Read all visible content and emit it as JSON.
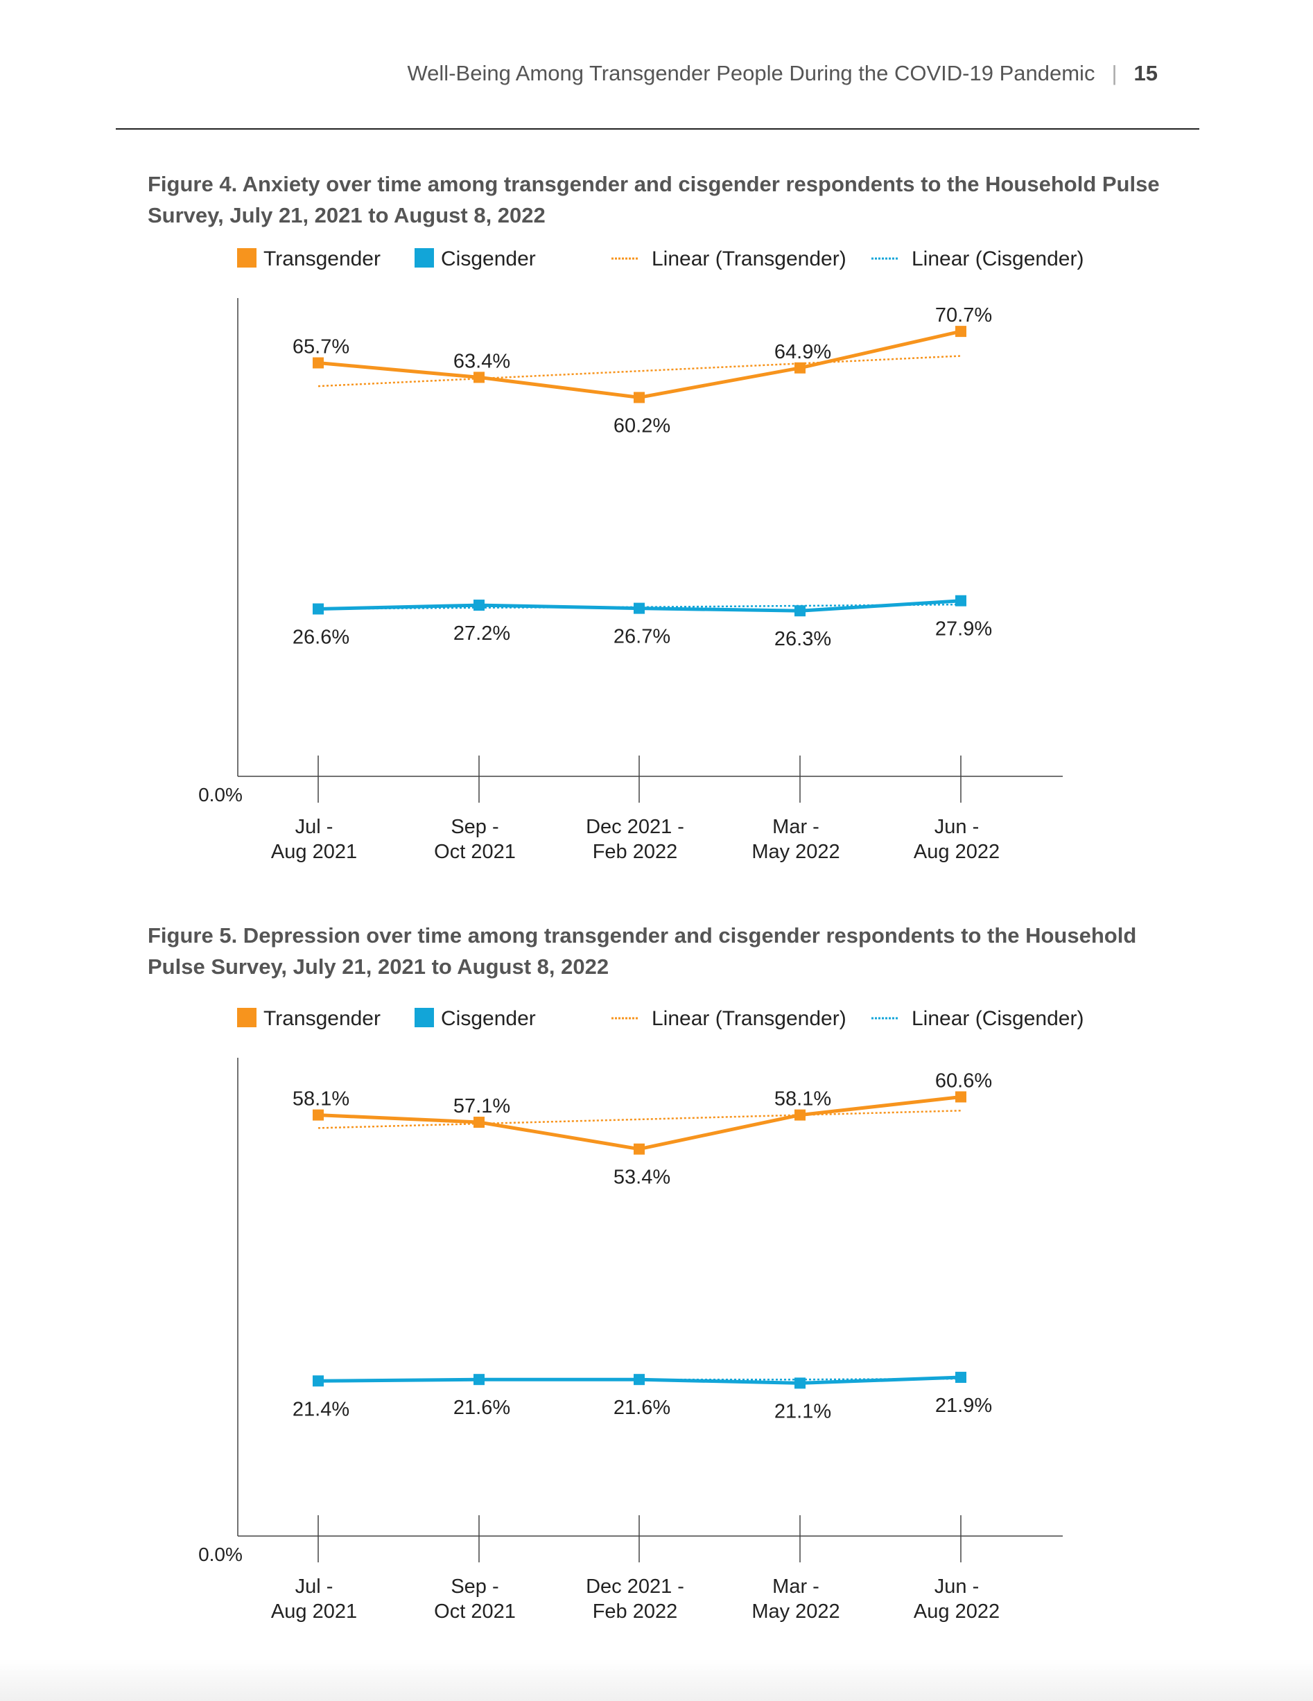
{
  "header": {
    "running_title": "Well-Being Among Transgender People During the COVID-19 Pandemic",
    "separator": "|",
    "page_number": "15"
  },
  "colors": {
    "transgender": "#F7941D",
    "cisgender": "#12A5D8",
    "axis": "#444444",
    "label_text": "#222222"
  },
  "figures": [
    {
      "title": "Figure 4. Anxiety over time among transgender and cisgender respondents to the Household Pulse Survey, July 21, 2021 to August 8, 2022"
    },
    {
      "title": "Figure 5. Depression over time among transgender and cisgender respondents to the Household Pulse Survey, July 21, 2021 to August 8, 2022"
    }
  ],
  "chart_data": [
    {
      "type": "line",
      "title": "Figure 4. Anxiety over time among transgender and cisgender respondents to the Household Pulse Survey, July 21, 2021 to August 8, 2022",
      "categories": [
        "Jul - Aug 2021",
        "Sep - Oct 2021",
        "Dec 2021 - Feb 2022",
        "Mar - May 2022",
        "Jun - Aug 2022"
      ],
      "category_lines": [
        [
          "Jul -",
          "Aug 2021"
        ],
        [
          "Sep -",
          "Oct 2021"
        ],
        [
          "Dec 2021 -",
          "Feb 2022"
        ],
        [
          "Mar -",
          "May 2022"
        ],
        [
          "Jun -",
          "Aug 2022"
        ]
      ],
      "y_tick_label": "0.0%",
      "ylim": [
        0,
        76
      ],
      "xlabel": "",
      "ylabel": "",
      "grid": false,
      "legend_position": "top",
      "legend": {
        "transgender": "Transgender",
        "cisgender": "Cisgender",
        "trend_transgender": "Linear (Transgender)",
        "trend_cisgender": "Linear (Cisgender)"
      },
      "series": [
        {
          "name": "Transgender",
          "color": "#F7941D",
          "values": [
            65.7,
            63.4,
            60.2,
            64.9,
            70.7
          ],
          "labels": [
            "65.7%",
            "63.4%",
            "60.2%",
            "64.9%",
            "70.7%"
          ],
          "label_side": [
            "above",
            "above",
            "below",
            "above",
            "above"
          ]
        },
        {
          "name": "Cisgender",
          "color": "#12A5D8",
          "values": [
            26.6,
            27.2,
            26.7,
            26.3,
            27.9
          ],
          "labels": [
            "26.6%",
            "27.2%",
            "26.7%",
            "26.3%",
            "27.9%"
          ],
          "label_side": [
            "below",
            "below",
            "below",
            "below",
            "below"
          ]
        }
      ],
      "trendlines": [
        {
          "name": "Linear (Transgender)",
          "color": "#F7941D",
          "values": [
            62.0,
            63.2,
            64.4,
            65.6,
            66.8
          ]
        },
        {
          "name": "Linear (Cisgender)",
          "color": "#12A5D8",
          "values": [
            26.6,
            26.8,
            26.9,
            27.1,
            27.3
          ]
        }
      ]
    },
    {
      "type": "line",
      "title": "Figure 5. Depression over time among transgender and cisgender respondents to the Household Pulse Survey, July 21, 2021 to August 8, 2022",
      "categories": [
        "Jul - Aug 2021",
        "Sep - Oct 2021",
        "Dec 2021 - Feb 2022",
        "Mar - May 2022",
        "Jun - Aug 2022"
      ],
      "category_lines": [
        [
          "Jul -",
          "Aug 2021"
        ],
        [
          "Sep -",
          "Oct 2021"
        ],
        [
          "Dec 2021 -",
          "Feb 2022"
        ],
        [
          "Mar -",
          "May 2022"
        ],
        [
          "Jun -",
          "Aug 2022"
        ]
      ],
      "y_tick_label": "0.0%",
      "ylim": [
        0,
        66
      ],
      "xlabel": "",
      "ylabel": "",
      "grid": false,
      "legend_position": "top",
      "legend": {
        "transgender": "Transgender",
        "cisgender": "Cisgender",
        "trend_transgender": "Linear (Transgender)",
        "trend_cisgender": "Linear (Cisgender)"
      },
      "series": [
        {
          "name": "Transgender",
          "color": "#F7941D",
          "values": [
            58.1,
            57.1,
            53.4,
            58.1,
            60.6
          ],
          "labels": [
            "58.1%",
            "57.1%",
            "53.4%",
            "58.1%",
            "60.6%"
          ],
          "label_side": [
            "above",
            "above",
            "below",
            "above",
            "above"
          ]
        },
        {
          "name": "Cisgender",
          "color": "#12A5D8",
          "values": [
            21.4,
            21.6,
            21.6,
            21.1,
            21.9
          ],
          "labels": [
            "21.4%",
            "21.6%",
            "21.6%",
            "21.1%",
            "21.9%"
          ],
          "label_side": [
            "below",
            "below",
            "below",
            "below",
            "below"
          ]
        }
      ],
      "trendlines": [
        {
          "name": "Linear (Transgender)",
          "color": "#F7941D",
          "values": [
            56.3,
            56.9,
            57.5,
            58.1,
            58.7
          ]
        },
        {
          "name": "Linear (Cisgender)",
          "color": "#12A5D8",
          "values": [
            21.5,
            21.5,
            21.6,
            21.6,
            21.7
          ]
        }
      ]
    }
  ]
}
